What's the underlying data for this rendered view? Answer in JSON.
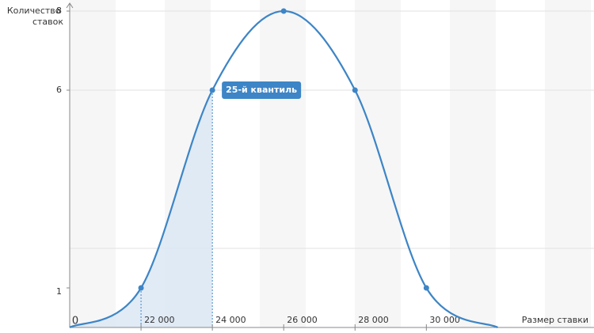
{
  "chart_data": {
    "type": "line",
    "y_label": "Количество ставок",
    "x_label": "Размер ставки",
    "origin_label": "0",
    "series": [
      {
        "color": "#3d85c6",
        "x": [
          20000,
          22000,
          24000,
          26000,
          28000,
          30000,
          32000
        ],
        "values": [
          0,
          1,
          6,
          8,
          6,
          1,
          0
        ]
      }
    ],
    "xlim": [
      20000,
      34700
    ],
    "ylim": [
      0,
      8.2
    ],
    "xticks": [
      {
        "value": 22000,
        "label": "22 000"
      },
      {
        "value": 24000,
        "label": "24 000"
      },
      {
        "value": 26000,
        "label": "26 000"
      },
      {
        "value": 28000,
        "label": "28 000"
      },
      {
        "value": 30000,
        "label": "30 000"
      }
    ],
    "yticks": [
      1,
      6,
      8
    ],
    "grid": [
      2,
      6,
      8
    ],
    "annotation": {
      "text": "25-й квантиль",
      "x": 24000,
      "y": 6
    }
  }
}
